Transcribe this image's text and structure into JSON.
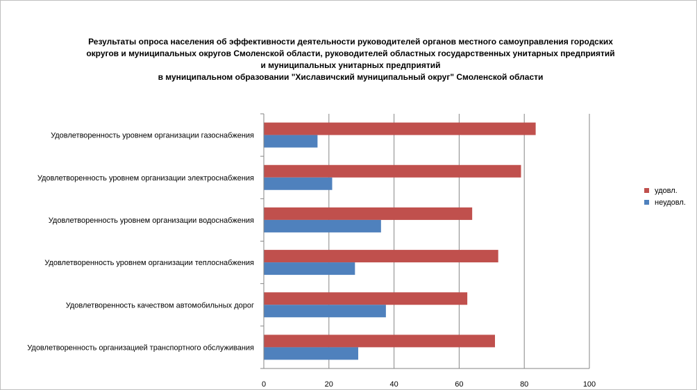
{
  "chart_data": {
    "type": "bar",
    "orientation": "horizontal",
    "title_lines": [
      "Результаты опроса населения об эффективности деятельности руководителей органов местного самоуправления городских",
      "округов и муниципальных округов Смоленской области, руководителей областных государственных унитарных предприятий",
      "и муниципальных унитарных предприятий",
      "в муниципальном образовании \"Хиславичский муниципальный округ\" Смоленской области"
    ],
    "categories": [
      "Удовлетворенность уровнем организации газоснабжения",
      "Удовлетворенность уровнем организации электроснабжения",
      "Удовлетворенность уровнем организации водоснабжения",
      "Удовлетворенность уровнем организации теплоснабжения",
      "Удовлетворенность качеством автомобильных дорог",
      "Удовлетворенность организацией транспортного обслуживания"
    ],
    "series": [
      {
        "name": "удовл.",
        "color": "#c0504d",
        "values": [
          83.5,
          79,
          64,
          72,
          62.5,
          71
        ]
      },
      {
        "name": "неудовл.",
        "color": "#4f81bd",
        "values": [
          16.5,
          21,
          36,
          28,
          37.5,
          29
        ]
      }
    ],
    "xlim": [
      0,
      100
    ],
    "x_ticks": [
      "0",
      "20",
      "40",
      "60",
      "80",
      "100"
    ],
    "x_tick_values": [
      0,
      20,
      40,
      60,
      80,
      100
    ],
    "grid": true,
    "legend_position": "right"
  }
}
